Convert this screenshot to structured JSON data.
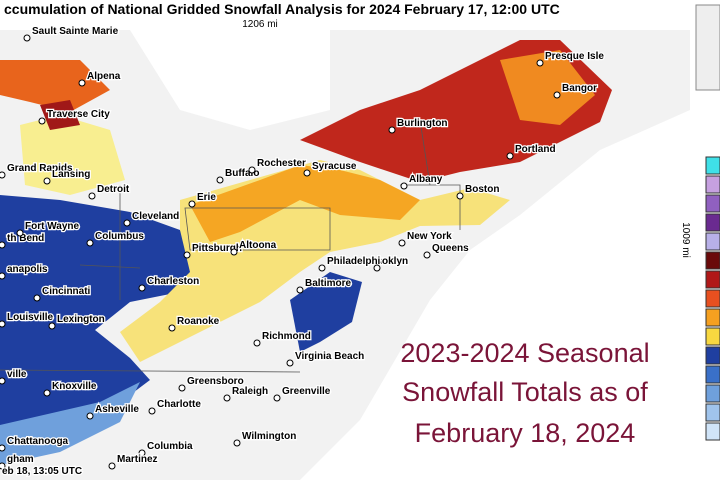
{
  "header": {
    "title": "ccumulation of National Gridded Snowfall Analysis for 2024 February 17, 12:00 UTC",
    "scale_x": "1206 mi",
    "scale_y": "1009 mi"
  },
  "cities": [
    "Sault Sainte Marie",
    "Alpena",
    "Traverse City",
    "Grand Rapids",
    "Lansing",
    "Detroit",
    "th Bend",
    "Fort Wayne",
    "Cleveland",
    "Erie",
    "Buffalo",
    "Rochester",
    "Syracuse",
    "Burlington",
    "Presque Isle",
    "Bangor",
    "Portland",
    "Albany",
    "Boston",
    "Pittsburgh",
    "Altoona",
    "New York",
    "Queens",
    "Philadelphia",
    "oklyn",
    "Baltimore",
    "Columbus",
    "Cincinnati",
    "anapolis",
    "Louisville",
    "Lexington",
    "Charleston",
    "Roanoke",
    "Richmond",
    "Virginia Beach",
    "Knoxville",
    "Asheville",
    "Greensboro",
    "Raleigh",
    "Greenville",
    "Charlotte",
    "Chattanooga",
    "Columbia",
    "Wilmington",
    "Martinez",
    "gham",
    "ville"
  ],
  "overlay": [
    "2023-2024 Seasonal",
    "Snowfall Totals as of",
    "February 18, 2024"
  ],
  "footer": "eb 18, 13:05 UTC"
}
